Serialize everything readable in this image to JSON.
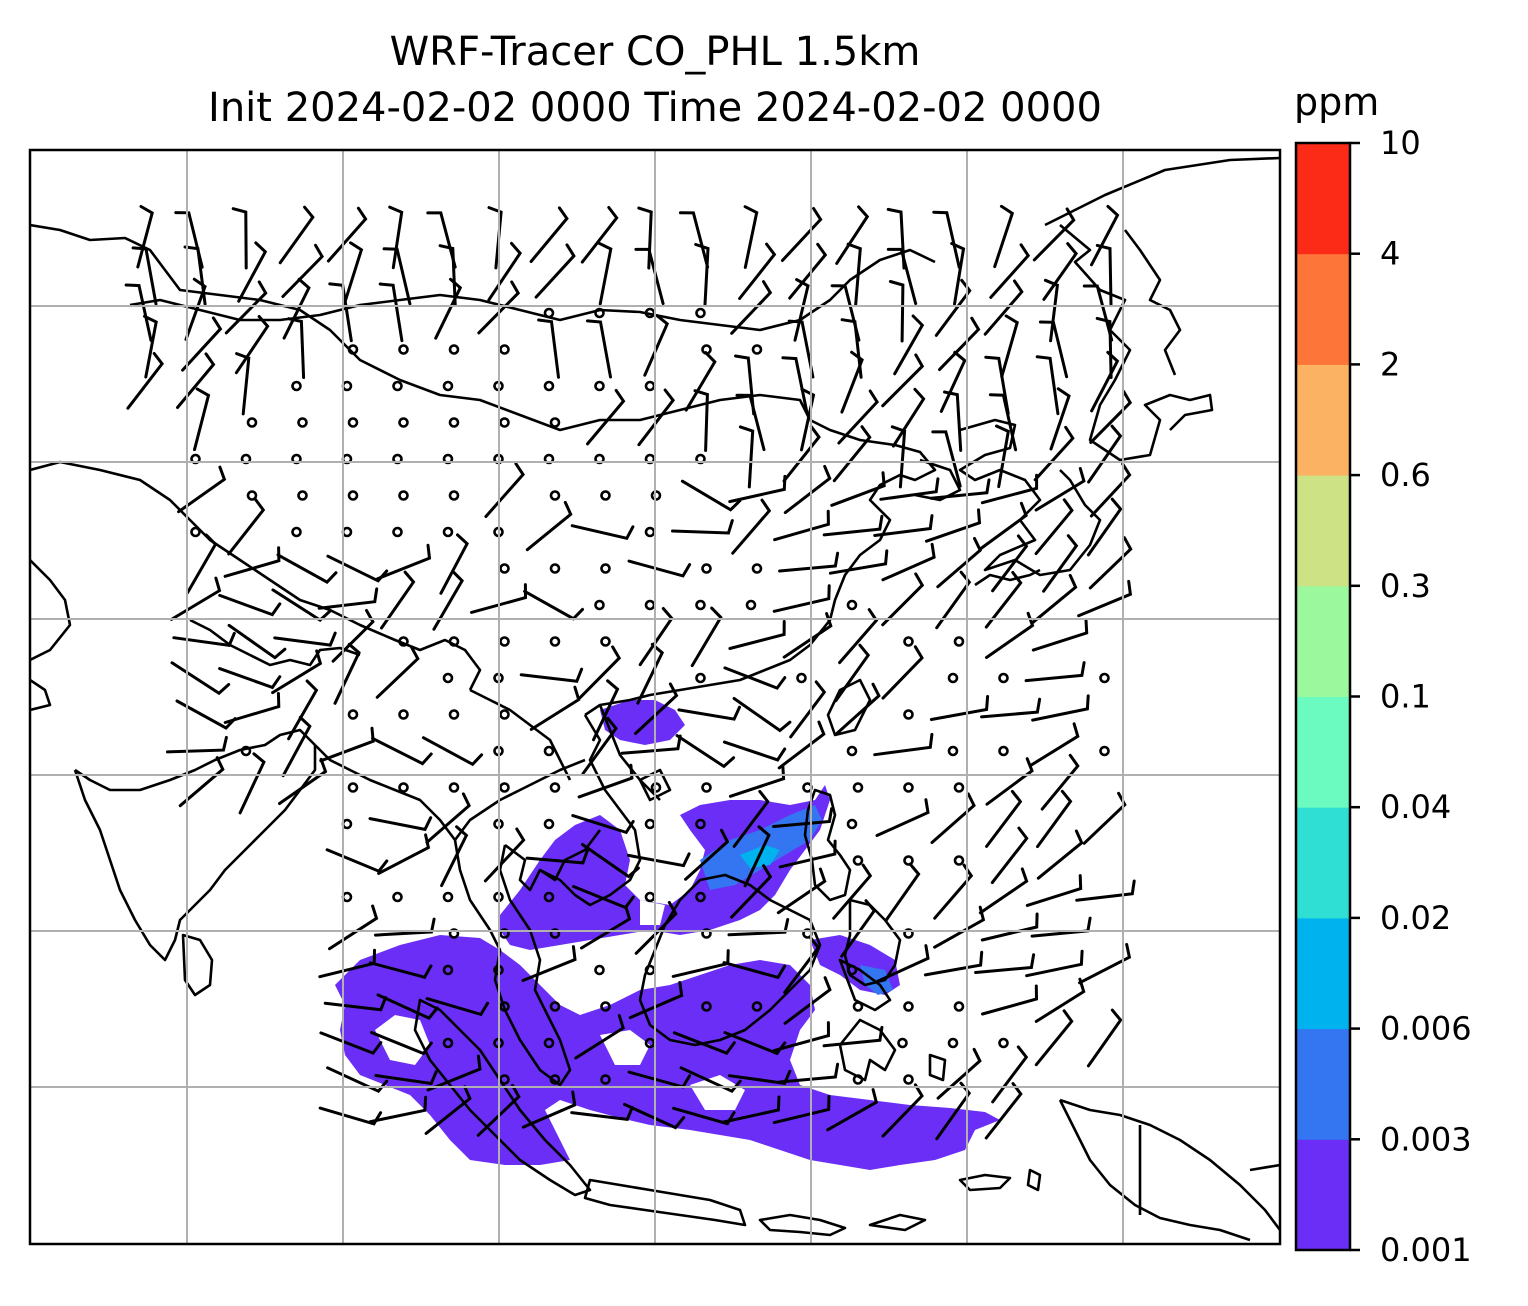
{
  "title": {
    "line1": "WRF-Tracer CO_PHL 1.5km",
    "line2": "Init 2024-02-02 0000 Time 2024-02-02 0000"
  },
  "colorbar": {
    "unit": "ppm",
    "levels": [
      "0.001",
      "0.003",
      "0.006",
      "0.02",
      "0.04",
      "0.1",
      "0.3",
      "0.6",
      "2",
      "4",
      "10"
    ],
    "colors": [
      "#6a2ef7",
      "#3475f2",
      "#00b3ee",
      "#2fdfd4",
      "#6bfbc0",
      "#9bf89c",
      "#cde285",
      "#fcb263",
      "#fe7539",
      "#fc2b17"
    ]
  },
  "map": {
    "gridlines": true,
    "background": "#ffffff",
    "plume_color": "#6a2ef7",
    "plume_core_colors": [
      "#3475f2",
      "#00b3ee"
    ]
  }
}
